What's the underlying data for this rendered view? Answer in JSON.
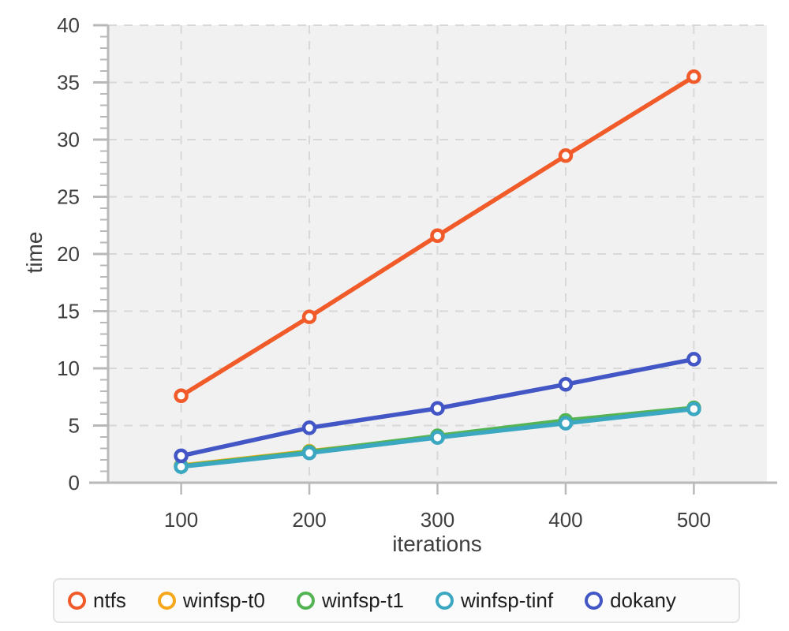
{
  "chart_data": {
    "type": "line",
    "title": "",
    "xlabel": "iterations",
    "ylabel": "time",
    "x": [
      100,
      200,
      300,
      400,
      500
    ],
    "series": [
      {
        "name": "ntfs",
        "color": "#f15b2a",
        "values": [
          7.6,
          14.5,
          21.6,
          28.6,
          35.5
        ]
      },
      {
        "name": "winfsp-t0",
        "color": "#f6a81c",
        "values": [
          1.5,
          2.75,
          4.0,
          5.3,
          6.5
        ]
      },
      {
        "name": "winfsp-t1",
        "color": "#54b353",
        "values": [
          1.45,
          2.7,
          4.1,
          5.45,
          6.55
        ]
      },
      {
        "name": "winfsp-tinf",
        "color": "#3ba7c1",
        "values": [
          1.4,
          2.6,
          3.95,
          5.2,
          6.45
        ]
      },
      {
        "name": "dokany",
        "color": "#4356c6",
        "values": [
          2.35,
          4.8,
          6.5,
          8.6,
          10.8
        ]
      }
    ],
    "xlim": [
      43,
      557
    ],
    "ylim": [
      0,
      40
    ],
    "y_major_tick_step": 5,
    "y_minor_tick_step": 1,
    "x_tick_labels": [
      "100",
      "200",
      "300",
      "400",
      "500"
    ],
    "y_tick_labels": [
      "0",
      "5",
      "10",
      "15",
      "20",
      "25",
      "30",
      "35",
      "40"
    ],
    "grid": "dashed",
    "legend_position": "bottom",
    "marker": "open-circle"
  },
  "style": {
    "plot_background": "#f1f1f1",
    "grid_color": "#d8d8d8",
    "axis_color": "#b9b9b9",
    "tick_label_color": "#3f3f3f",
    "legend_text_color": "#1f1f1f"
  }
}
